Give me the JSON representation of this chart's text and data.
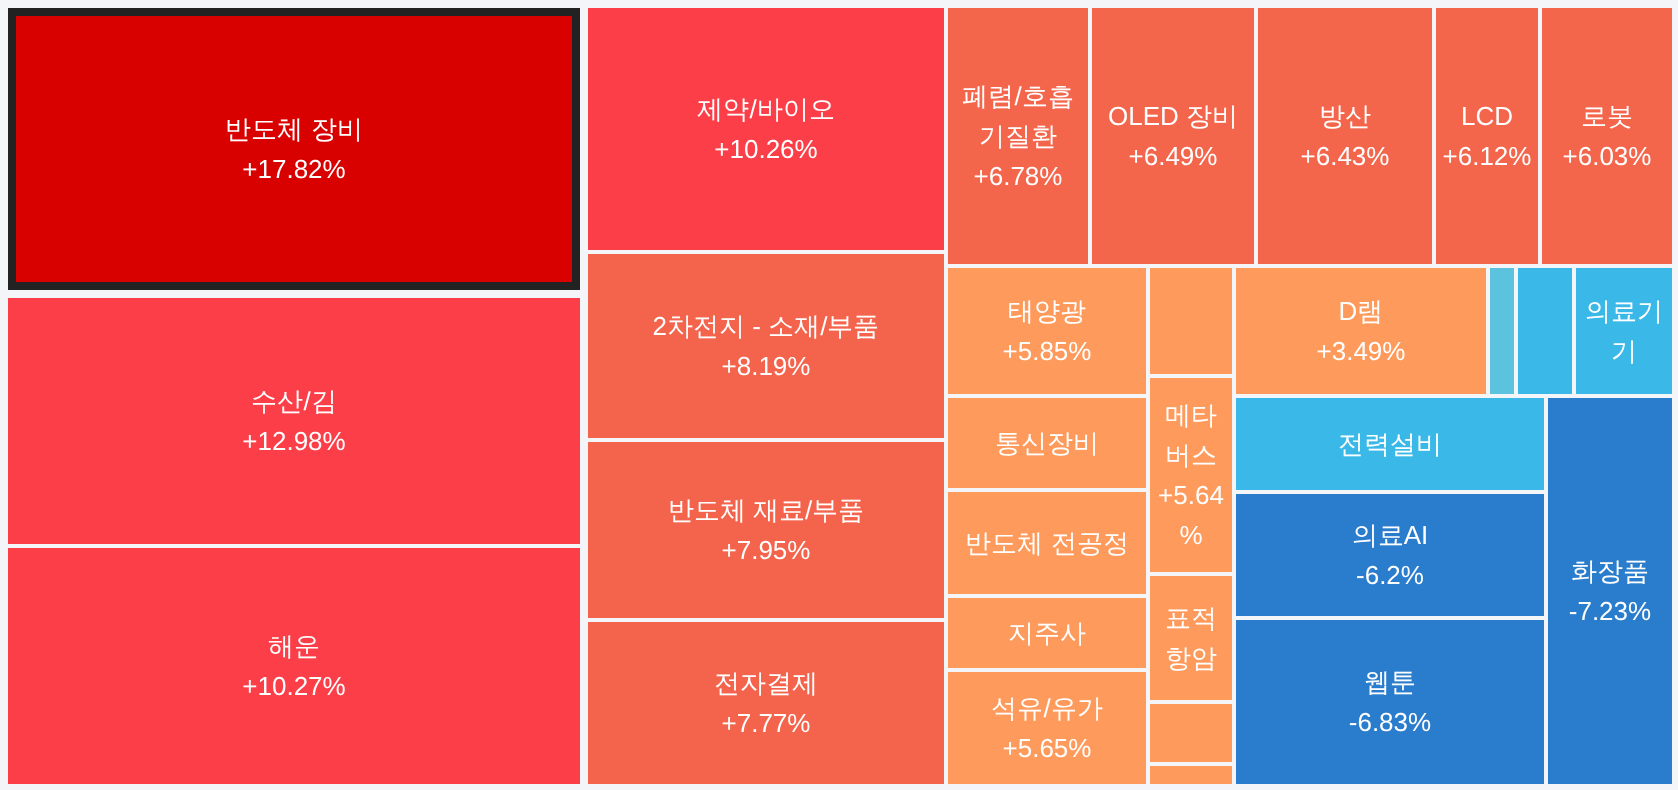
{
  "chart_data": {
    "type": "other",
    "categories": [
      "반도체 장비",
      "수산/김",
      "해운",
      "제약/바이오",
      "2차전지 - 소재/부품",
      "반도체 재료/부품",
      "전자결제",
      "폐렴/호흡 기질환",
      "OLED 장비",
      "방산",
      "LCD",
      "로봇",
      "태양광",
      "통신장비",
      "반도체 전공정",
      "지주사",
      "석유/유가",
      null,
      "메타버스",
      "표적항암",
      null,
      null,
      "D램",
      null,
      null,
      "의료기기",
      "전력설비",
      "의료AI",
      "웹툰",
      "화장품"
    ],
    "values": [
      17.82,
      12.98,
      10.27,
      10.26,
      8.19,
      7.95,
      7.77,
      6.78,
      6.49,
      6.43,
      6.12,
      6.03,
      5.85,
      null,
      null,
      null,
      5.65,
      null,
      5.64,
      null,
      null,
      null,
      3.49,
      null,
      null,
      null,
      null,
      -6.2,
      -6.83,
      -7.23
    ],
    "value_labels": [
      "+17.82%",
      "+12.98%",
      "+10.27%",
      "+10.26%",
      "+8.19%",
      "+7.95%",
      "+7.77%",
      "+6.78%",
      "+6.49%",
      "+6.43%",
      "+6.12%",
      "+6.03%",
      "+5.85%",
      null,
      null,
      null,
      "+5.65%",
      null,
      "+5.64%",
      null,
      null,
      null,
      "+3.49%",
      null,
      null,
      null,
      null,
      "-6.2%",
      "-6.83%",
      "-7.23%"
    ],
    "colors": [
      "#d90000",
      "#fc3e48",
      "#fc3e48",
      "#fc3e48",
      "#f4634b",
      "#f4634b",
      "#f4634b",
      "#f4664c",
      "#f4664c",
      "#f4664c",
      "#f4664c",
      "#f4664c",
      "#fe9a5b",
      "#fe9a5b",
      "#fe9a5b",
      "#fe9a5b",
      "#fe9a5b",
      "#fe9a5b",
      "#fe9a5b",
      "#fe9a5b",
      "#fe9a5b",
      "#fe9a5b",
      "#fe9a5b",
      "#5bc3dd",
      "#3ab8e8",
      "#3ab8e8",
      "#3ab8e8",
      "#2a7ccc",
      "#2a7ccc",
      "#2a7ccc"
    ]
  }
}
